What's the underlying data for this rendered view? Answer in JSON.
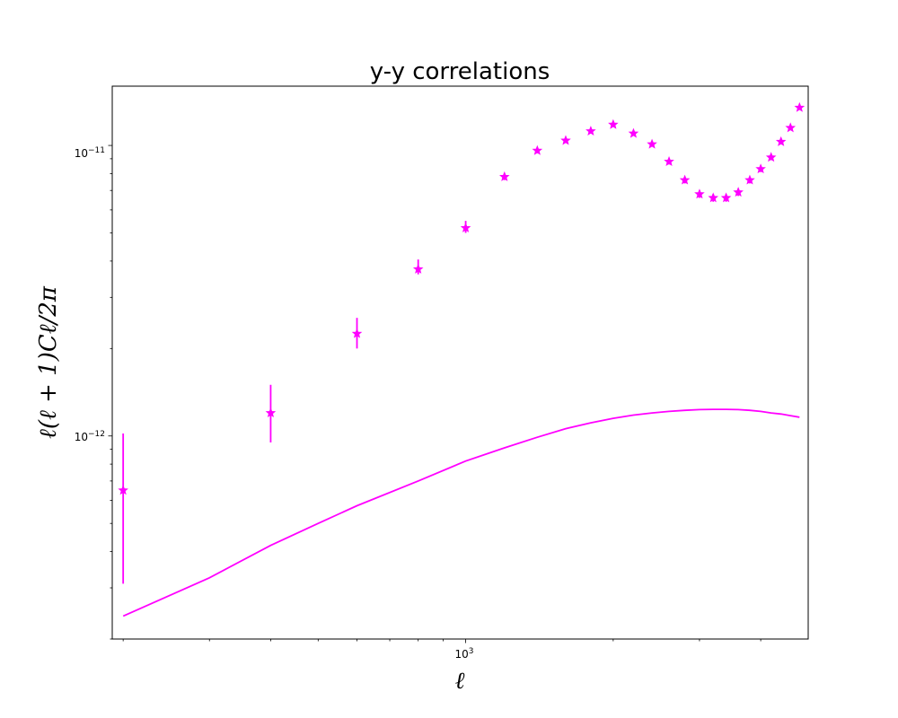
{
  "chart_data": {
    "type": "scatter",
    "title": "y-y correlations",
    "xlabel": "ℓ",
    "ylabel": "ℓ(ℓ + 1)Cℓ/2π",
    "xscale": "log",
    "yscale": "log",
    "xlim": [
      190,
      5000
    ],
    "ylim": [
      2e-13,
      1.6e-11
    ],
    "grid": false,
    "x_tick_labels": [
      {
        "value": 1000,
        "label": "10^3"
      }
    ],
    "y_tick_labels": [
      {
        "value": 1e-12,
        "label": "10^-12"
      },
      {
        "value": 1e-11,
        "label": "10^-11"
      }
    ],
    "color": "#ff00ff",
    "series": [
      {
        "kind": "points-with-errorbars",
        "marker": "star",
        "x": [
          200,
          400,
          600,
          800,
          1000,
          1200,
          1400,
          1600,
          1800,
          2000,
          2200,
          2400,
          2600,
          2800,
          3000,
          3200,
          3400,
          3600,
          3800,
          4000,
          4200,
          4400,
          4600,
          4800
        ],
        "y": [
          6.5e-13,
          1.2e-12,
          2.25e-12,
          3.75e-12,
          5.2e-12,
          7.8e-12,
          9.6e-12,
          1.04e-11,
          1.12e-11,
          1.18e-11,
          1.1e-11,
          1.01e-11,
          8.8e-12,
          7.6e-12,
          6.8e-12,
          6.6e-12,
          6.6e-12,
          6.9e-12,
          7.6e-12,
          8.3e-12,
          9.1e-12,
          1.03e-11,
          1.15e-11,
          1.35e-11
        ],
        "yerr_low": [
          3.1e-13,
          9.5e-13,
          2e-12,
          3.6e-12,
          5e-12,
          7.6e-12,
          9.4e-12,
          1.02e-11,
          1.1e-11,
          1.16e-11,
          1.08e-11,
          9.9e-12,
          8.6e-12,
          7.4e-12,
          6.6e-12,
          6.4e-12,
          6.4e-12,
          6.7e-12,
          7.4e-12,
          8.1e-12,
          8.9e-12,
          1.01e-11,
          1.13e-11,
          1.33e-11
        ],
        "yerr_high": [
          1.02e-12,
          1.5e-12,
          2.55e-12,
          4.05e-12,
          5.5e-12,
          8e-12,
          9.8e-12,
          1.06e-11,
          1.14e-11,
          1.2e-11,
          1.12e-11,
          1.03e-11,
          9e-12,
          7.8e-12,
          7e-12,
          6.8e-12,
          6.8e-12,
          7.1e-12,
          7.8e-12,
          8.5e-12,
          9.3e-12,
          1.05e-11,
          1.17e-11,
          1.37e-11
        ]
      },
      {
        "kind": "line",
        "x": [
          200,
          300,
          400,
          500,
          600,
          800,
          1000,
          1200,
          1400,
          1600,
          1800,
          2000,
          2200,
          2400,
          2600,
          2800,
          3000,
          3200,
          3400,
          3600,
          3800,
          4000,
          4200,
          4400,
          4600,
          4800
        ],
        "y": [
          2.4e-13,
          3.25e-13,
          4.2e-13,
          5e-13,
          5.75e-13,
          7e-13,
          8.2e-13,
          9.1e-13,
          9.9e-13,
          1.06e-12,
          1.11e-12,
          1.15e-12,
          1.18e-12,
          1.2e-12,
          1.215e-12,
          1.225e-12,
          1.232e-12,
          1.235e-12,
          1.235e-12,
          1.232e-12,
          1.225e-12,
          1.215e-12,
          1.2e-12,
          1.19e-12,
          1.175e-12,
          1.16e-12
        ]
      }
    ]
  }
}
